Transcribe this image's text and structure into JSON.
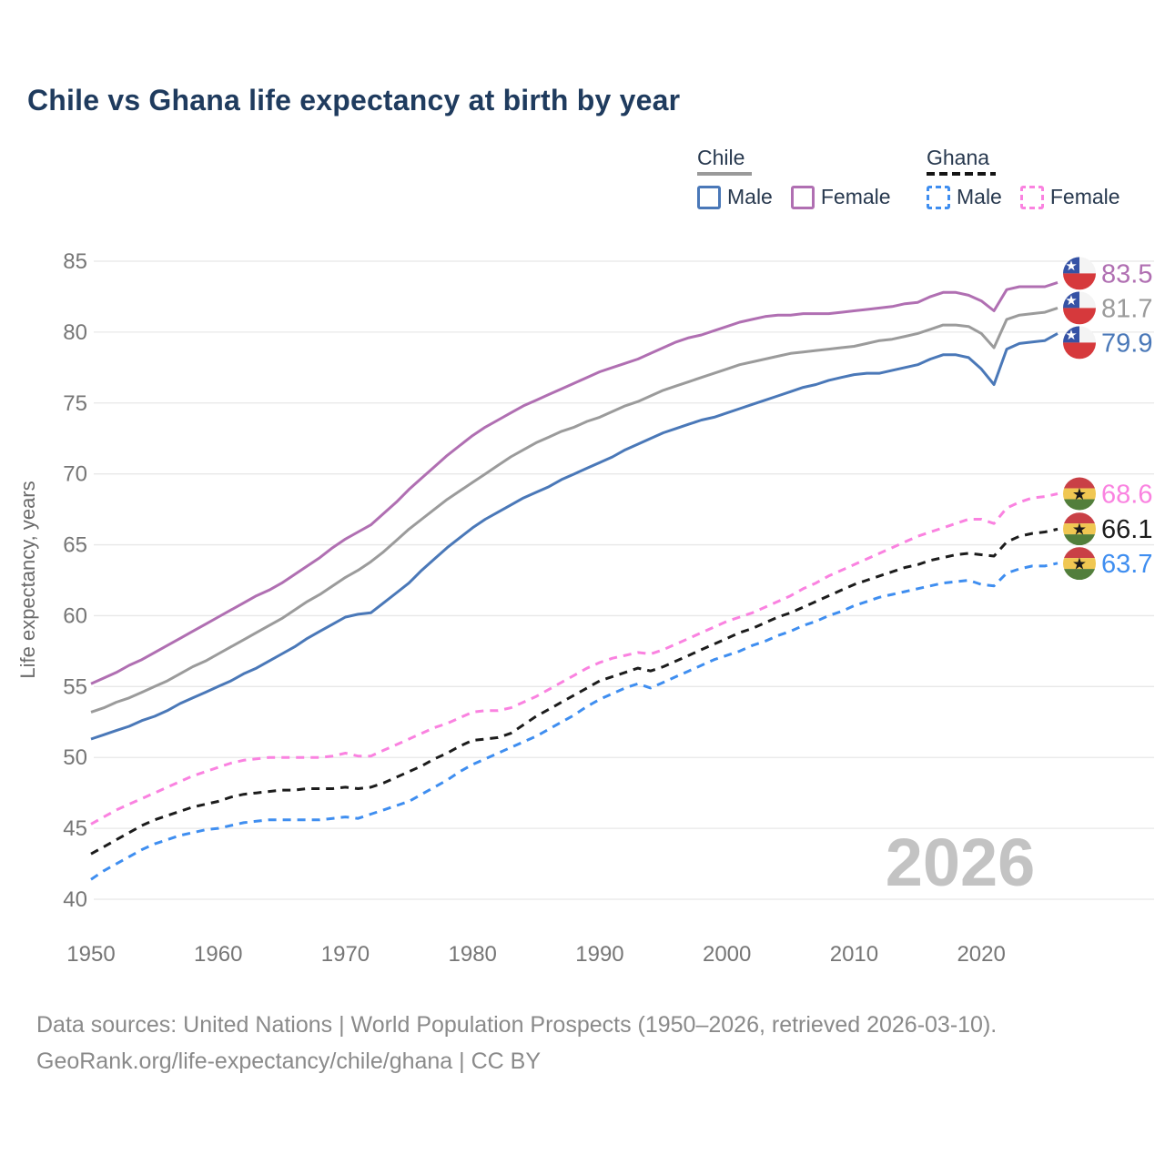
{
  "title": "Chile vs Ghana life expectancy at birth by year",
  "watermark": "2026",
  "footer": {
    "line1": "Data sources: United Nations | World Population Prospects (1950–2026, retrieved 2026-03-10).",
    "line2": "GeoRank.org/life-expectancy/chile/ghana | CC BY"
  },
  "colors": {
    "title": "#1f3b5e",
    "tick_label": "#767676",
    "axis_title": "#6b6b6b",
    "gridline": "#e8e8e8",
    "watermark": "#c3c3c3",
    "footer": "#8a8a8a",
    "chile_male": "#4a78b8",
    "chile_female": "#b06fb2",
    "chile_total": "#9b9b9b",
    "ghana_male": "#3f8ef0",
    "ghana_female": "#fa82e0",
    "ghana_total": "#1c1c1c",
    "flag_chile_blue": "#3552a5",
    "flag_chile_red": "#d6393c",
    "flag_ghana_red": "#c94046",
    "flag_ghana_gold": "#f0c752",
    "flag_ghana_green": "#527e3b"
  },
  "legend": {
    "groups": [
      {
        "name": "Chile",
        "underline_style": "solid",
        "underline_color": "#9a9a9a",
        "items": [
          {
            "label": "Male",
            "color": "#4a78b8",
            "dash": "solid"
          },
          {
            "label": "Female",
            "color": "#b06fb2",
            "dash": "solid"
          }
        ]
      },
      {
        "name": "Ghana",
        "underline_style": "dashed",
        "underline_color": "#151515",
        "items": [
          {
            "label": "Male",
            "color": "#3f8ef0",
            "dash": "dashed"
          },
          {
            "label": "Female",
            "color": "#fa82e0",
            "dash": "dashed"
          }
        ]
      }
    ]
  },
  "chart_data": {
    "type": "line",
    "title": "Chile vs Ghana life expectancy at birth by year",
    "xlabel": "",
    "ylabel": "Life expectancy, years",
    "grid": "horizontal",
    "legend_position": "top-right",
    "x_start": 1950,
    "x_end": 2026,
    "xticks": [
      1950,
      1960,
      1970,
      1980,
      1990,
      2000,
      2010,
      2020
    ],
    "yticks": [
      40,
      45,
      50,
      55,
      60,
      65,
      70,
      75,
      80,
      85
    ],
    "ylim": [
      38.5,
      86.5
    ],
    "series": [
      {
        "id": "chile-female",
        "country": "Chile",
        "sex": "Female",
        "dash": "solid",
        "color": "#b06fb2",
        "flag": "chile",
        "end_label": "83.5",
        "values": [
          55.2,
          55.6,
          56.0,
          56.5,
          56.9,
          57.4,
          57.9,
          58.4,
          58.9,
          59.4,
          59.9,
          60.4,
          60.9,
          61.4,
          61.8,
          62.3,
          62.9,
          63.5,
          64.1,
          64.8,
          65.4,
          65.9,
          66.4,
          67.2,
          68.0,
          68.9,
          69.7,
          70.5,
          71.3,
          72.0,
          72.7,
          73.3,
          73.8,
          74.3,
          74.8,
          75.2,
          75.6,
          76.0,
          76.4,
          76.8,
          77.2,
          77.5,
          77.8,
          78.1,
          78.5,
          78.9,
          79.3,
          79.6,
          79.8,
          80.1,
          80.4,
          80.7,
          80.9,
          81.1,
          81.2,
          81.2,
          81.3,
          81.3,
          81.3,
          81.4,
          81.5,
          81.6,
          81.7,
          81.8,
          82.0,
          82.1,
          82.5,
          82.8,
          82.8,
          82.6,
          82.2,
          81.5,
          83.0,
          83.2,
          83.2,
          83.2,
          83.5
        ]
      },
      {
        "id": "chile-total",
        "country": "Chile",
        "sex": "Both sexes",
        "dash": "solid",
        "color": "#9b9b9b",
        "flag": "chile",
        "end_label": "81.7",
        "values": [
          53.2,
          53.5,
          53.9,
          54.2,
          54.6,
          55.0,
          55.4,
          55.9,
          56.4,
          56.8,
          57.3,
          57.8,
          58.3,
          58.8,
          59.3,
          59.8,
          60.4,
          61.0,
          61.5,
          62.1,
          62.7,
          63.2,
          63.8,
          64.5,
          65.3,
          66.1,
          66.8,
          67.5,
          68.2,
          68.8,
          69.4,
          70.0,
          70.6,
          71.2,
          71.7,
          72.2,
          72.6,
          73.0,
          73.3,
          73.7,
          74.0,
          74.4,
          74.8,
          75.1,
          75.5,
          75.9,
          76.2,
          76.5,
          76.8,
          77.1,
          77.4,
          77.7,
          77.9,
          78.1,
          78.3,
          78.5,
          78.6,
          78.7,
          78.8,
          78.9,
          79.0,
          79.2,
          79.4,
          79.5,
          79.7,
          79.9,
          80.2,
          80.5,
          80.5,
          80.4,
          79.9,
          78.9,
          80.9,
          81.2,
          81.3,
          81.4,
          81.7
        ]
      },
      {
        "id": "chile-male",
        "country": "Chile",
        "sex": "Male",
        "dash": "solid",
        "color": "#4a78b8",
        "flag": "chile",
        "end_label": "79.9",
        "values": [
          51.3,
          51.6,
          51.9,
          52.2,
          52.6,
          52.9,
          53.3,
          53.8,
          54.2,
          54.6,
          55.0,
          55.4,
          55.9,
          56.3,
          56.8,
          57.3,
          57.8,
          58.4,
          58.9,
          59.4,
          59.9,
          60.1,
          60.2,
          60.9,
          61.6,
          62.3,
          63.2,
          64.0,
          64.8,
          65.5,
          66.2,
          66.8,
          67.3,
          67.8,
          68.3,
          68.7,
          69.1,
          69.6,
          70.0,
          70.4,
          70.8,
          71.2,
          71.7,
          72.1,
          72.5,
          72.9,
          73.2,
          73.5,
          73.8,
          74.0,
          74.3,
          74.6,
          74.9,
          75.2,
          75.5,
          75.8,
          76.1,
          76.3,
          76.6,
          76.8,
          77.0,
          77.1,
          77.1,
          77.3,
          77.5,
          77.7,
          78.1,
          78.4,
          78.4,
          78.2,
          77.4,
          76.3,
          78.8,
          79.2,
          79.3,
          79.4,
          79.9
        ]
      },
      {
        "id": "ghana-female",
        "country": "Ghana",
        "sex": "Female",
        "dash": "dashed",
        "color": "#fa82e0",
        "flag": "ghana",
        "end_label": "68.6",
        "values": [
          45.3,
          45.8,
          46.3,
          46.7,
          47.1,
          47.5,
          47.9,
          48.3,
          48.7,
          49.0,
          49.3,
          49.6,
          49.8,
          49.9,
          50.0,
          50.0,
          50.0,
          50.0,
          50.0,
          50.1,
          50.3,
          50.1,
          50.1,
          50.5,
          50.9,
          51.3,
          51.7,
          52.1,
          52.4,
          52.8,
          53.2,
          53.3,
          53.3,
          53.5,
          53.9,
          54.3,
          54.8,
          55.3,
          55.8,
          56.3,
          56.7,
          57.0,
          57.2,
          57.4,
          57.3,
          57.6,
          58.0,
          58.4,
          58.8,
          59.2,
          59.6,
          59.9,
          60.2,
          60.6,
          61.0,
          61.4,
          61.9,
          62.3,
          62.8,
          63.2,
          63.6,
          64.0,
          64.4,
          64.8,
          65.2,
          65.6,
          65.9,
          66.2,
          66.5,
          66.8,
          66.8,
          66.5,
          67.6,
          68.0,
          68.3,
          68.4,
          68.6
        ]
      },
      {
        "id": "ghana-total",
        "country": "Ghana",
        "sex": "Both sexes",
        "dash": "dashed",
        "color": "#1c1c1c",
        "flag": "ghana",
        "end_label": "66.1",
        "values": [
          43.2,
          43.7,
          44.2,
          44.7,
          45.2,
          45.6,
          45.9,
          46.2,
          46.5,
          46.7,
          46.9,
          47.2,
          47.4,
          47.5,
          47.6,
          47.7,
          47.7,
          47.8,
          47.8,
          47.8,
          47.9,
          47.8,
          47.9,
          48.2,
          48.6,
          49.0,
          49.4,
          49.9,
          50.3,
          50.8,
          51.2,
          51.3,
          51.4,
          51.7,
          52.3,
          52.9,
          53.4,
          53.9,
          54.4,
          54.9,
          55.4,
          55.7,
          56.0,
          56.3,
          56.1,
          56.4,
          56.8,
          57.2,
          57.6,
          58.0,
          58.4,
          58.8,
          59.1,
          59.5,
          59.9,
          60.2,
          60.6,
          61.0,
          61.4,
          61.8,
          62.2,
          62.5,
          62.8,
          63.1,
          63.4,
          63.6,
          63.9,
          64.1,
          64.3,
          64.4,
          64.3,
          64.2,
          65.2,
          65.6,
          65.8,
          65.9,
          66.1
        ]
      },
      {
        "id": "ghana-male",
        "country": "Ghana",
        "sex": "Male",
        "dash": "dashed",
        "color": "#3f8ef0",
        "flag": "ghana",
        "end_label": "63.7",
        "values": [
          41.4,
          42.0,
          42.5,
          43.0,
          43.5,
          43.9,
          44.2,
          44.5,
          44.7,
          44.9,
          45.0,
          45.2,
          45.4,
          45.5,
          45.6,
          45.6,
          45.6,
          45.6,
          45.6,
          45.7,
          45.8,
          45.7,
          46.0,
          46.3,
          46.6,
          46.9,
          47.4,
          47.9,
          48.4,
          49.0,
          49.5,
          49.9,
          50.3,
          50.7,
          51.1,
          51.5,
          52.0,
          52.5,
          53.0,
          53.6,
          54.1,
          54.5,
          54.9,
          55.2,
          54.9,
          55.3,
          55.7,
          56.1,
          56.5,
          56.9,
          57.2,
          57.5,
          57.9,
          58.2,
          58.6,
          58.9,
          59.3,
          59.6,
          60.0,
          60.3,
          60.7,
          61.0,
          61.3,
          61.5,
          61.7,
          61.9,
          62.1,
          62.3,
          62.4,
          62.5,
          62.2,
          62.1,
          63.0,
          63.3,
          63.5,
          63.5,
          63.7
        ]
      }
    ]
  }
}
